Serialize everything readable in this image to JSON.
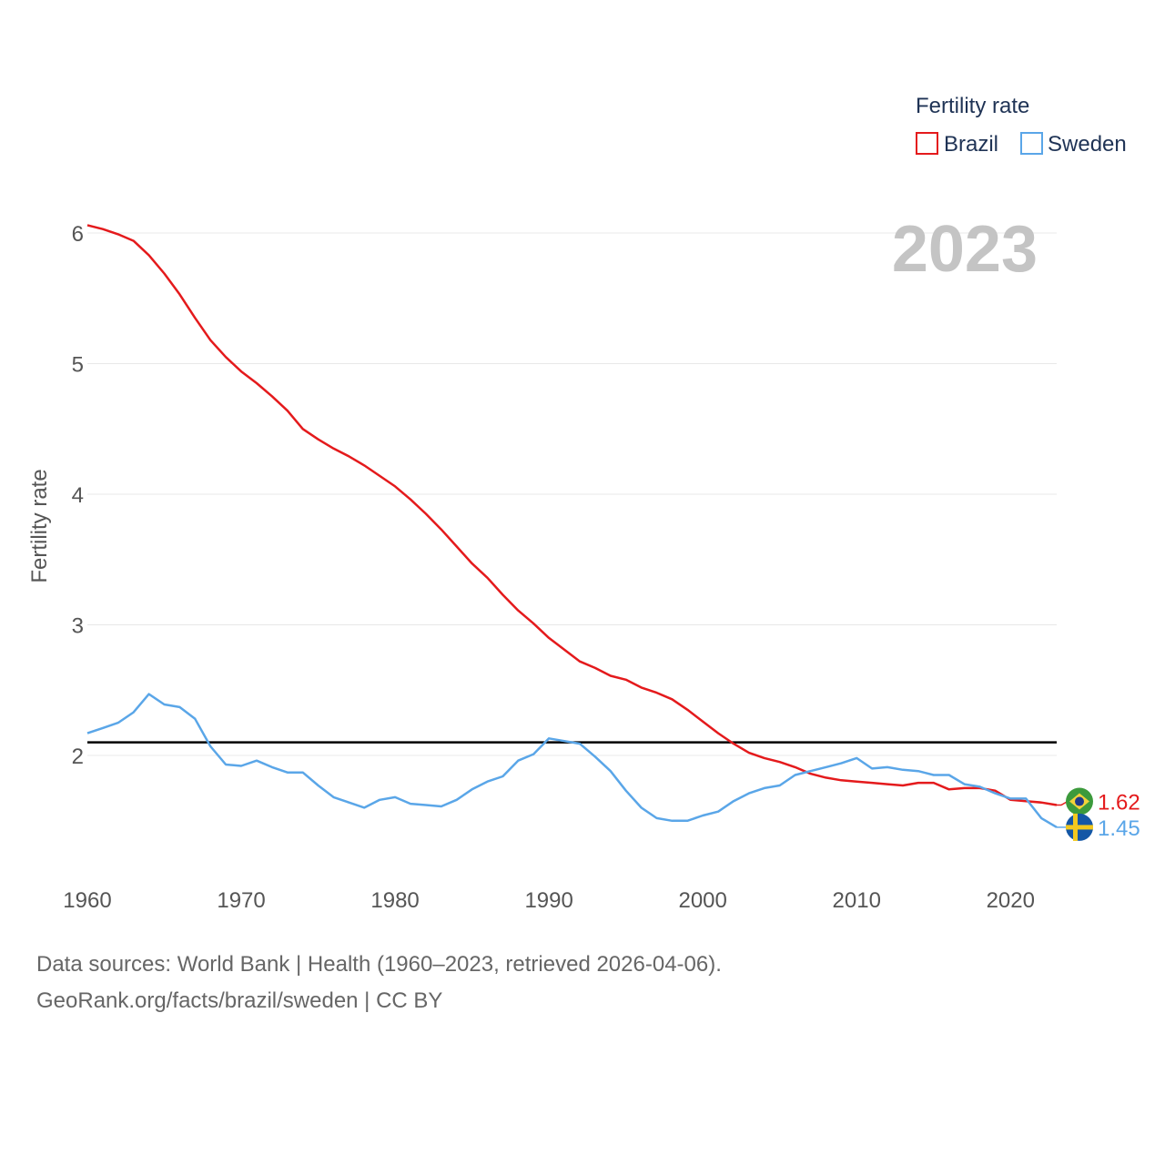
{
  "chart_data": {
    "type": "line",
    "title": "",
    "year_label": "2023",
    "xlabel": "",
    "ylabel": "Fertility rate",
    "xlim": [
      1960,
      2023
    ],
    "ylim": [
      1,
      6.2
    ],
    "x_ticks": [
      1960,
      1970,
      1980,
      1990,
      2000,
      2010,
      2020
    ],
    "y_ticks": [
      2,
      3,
      4,
      5,
      6
    ],
    "reference_line": {
      "y": 2.1,
      "color": "#000000"
    },
    "legend": {
      "title": "Fertility rate",
      "position": "top-right"
    },
    "x": [
      1960,
      1961,
      1962,
      1963,
      1964,
      1965,
      1966,
      1967,
      1968,
      1969,
      1970,
      1971,
      1972,
      1973,
      1974,
      1975,
      1976,
      1977,
      1978,
      1979,
      1980,
      1981,
      1982,
      1983,
      1984,
      1985,
      1986,
      1987,
      1988,
      1989,
      1990,
      1991,
      1992,
      1993,
      1994,
      1995,
      1996,
      1997,
      1998,
      1999,
      2000,
      2001,
      2002,
      2003,
      2004,
      2005,
      2006,
      2007,
      2008,
      2009,
      2010,
      2011,
      2012,
      2013,
      2014,
      2015,
      2016,
      2017,
      2018,
      2019,
      2020,
      2021,
      2022,
      2023
    ],
    "series": [
      {
        "name": "Brazil",
        "color": "#e41a1c",
        "end_label": "1.62",
        "flag": "brazil-flag",
        "values": [
          6.06,
          6.03,
          5.99,
          5.94,
          5.83,
          5.69,
          5.53,
          5.35,
          5.18,
          5.05,
          4.94,
          4.85,
          4.75,
          4.64,
          4.5,
          4.42,
          4.35,
          4.29,
          4.22,
          4.14,
          4.06,
          3.96,
          3.85,
          3.73,
          3.6,
          3.47,
          3.36,
          3.23,
          3.11,
          3.01,
          2.9,
          2.81,
          2.72,
          2.67,
          2.61,
          2.58,
          2.52,
          2.48,
          2.43,
          2.35,
          2.26,
          2.17,
          2.09,
          2.02,
          1.98,
          1.95,
          1.91,
          1.86,
          1.83,
          1.81,
          1.8,
          1.79,
          1.78,
          1.77,
          1.79,
          1.79,
          1.74,
          1.75,
          1.75,
          1.73,
          1.66,
          1.65,
          1.64,
          1.62
        ]
      },
      {
        "name": "Sweden",
        "color": "#5aa6e8",
        "end_label": "1.45",
        "flag": "sweden-flag",
        "values": [
          2.17,
          2.21,
          2.25,
          2.33,
          2.47,
          2.39,
          2.37,
          2.28,
          2.07,
          1.93,
          1.92,
          1.96,
          1.91,
          1.87,
          1.87,
          1.77,
          1.68,
          1.64,
          1.6,
          1.66,
          1.68,
          1.63,
          1.62,
          1.61,
          1.66,
          1.74,
          1.8,
          1.84,
          1.96,
          2.01,
          2.13,
          2.11,
          2.09,
          1.99,
          1.88,
          1.73,
          1.6,
          1.52,
          1.5,
          1.5,
          1.54,
          1.57,
          1.65,
          1.71,
          1.75,
          1.77,
          1.85,
          1.88,
          1.91,
          1.94,
          1.98,
          1.9,
          1.91,
          1.89,
          1.88,
          1.85,
          1.85,
          1.78,
          1.76,
          1.71,
          1.67,
          1.67,
          1.52,
          1.45
        ]
      }
    ]
  },
  "footer": {
    "line1": "Data sources: World Bank | Health (1960–2023, retrieved 2026-04-06).",
    "line2": "GeoRank.org/facts/brazil/sweden | CC BY"
  }
}
